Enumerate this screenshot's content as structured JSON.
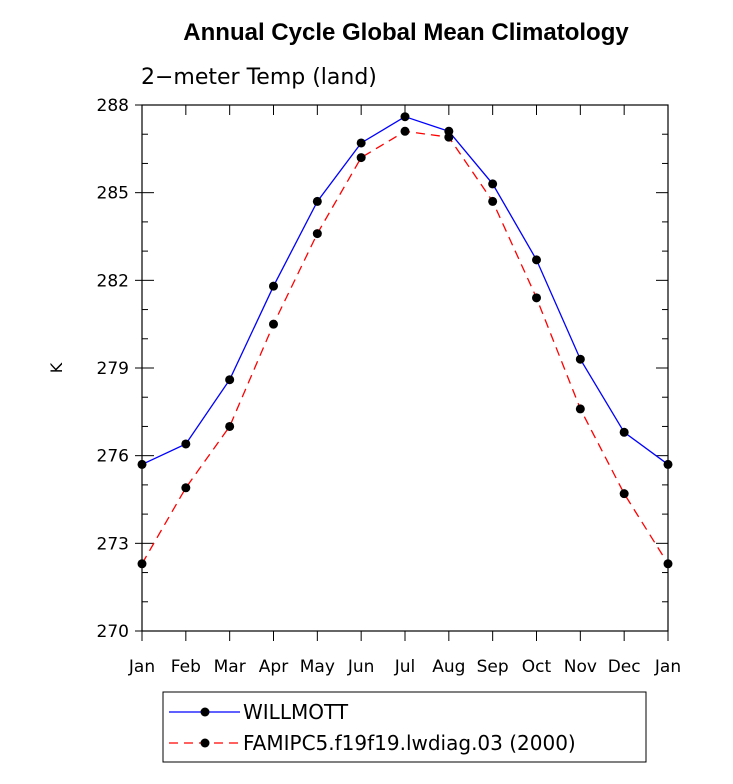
{
  "chart_data": {
    "type": "line",
    "title": "Annual Cycle Global Mean Climatology",
    "subtitle": "2−meter Temp (land)",
    "xlabel": "",
    "ylabel": "K",
    "categories": [
      "Jan",
      "Feb",
      "Mar",
      "Apr",
      "May",
      "Jun",
      "Jul",
      "Aug",
      "Sep",
      "Oct",
      "Nov",
      "Dec",
      "Jan"
    ],
    "ylim": [
      270,
      288
    ],
    "yticks": [
      270,
      273,
      276,
      279,
      282,
      285,
      288
    ],
    "ytick_labels": [
      "270",
      "273",
      "276",
      "279",
      "282",
      "285",
      "288"
    ],
    "grid": false,
    "legend_position": "bottom",
    "series": [
      {
        "name": "WILLMOTT",
        "color": "#0000ff",
        "line_style": "solid",
        "marker": "filled-circle",
        "values": [
          275.7,
          276.4,
          278.6,
          281.8,
          284.7,
          286.7,
          287.6,
          287.1,
          285.3,
          282.7,
          279.3,
          276.8,
          275.7
        ]
      },
      {
        "name": "FAMIPC5.f19f19.lwdiag.03 (2000)",
        "color": "#ff0000",
        "line_style": "dashed",
        "marker": "filled-circle",
        "values": [
          272.3,
          274.9,
          277.0,
          280.5,
          283.6,
          286.2,
          287.1,
          286.9,
          284.7,
          281.4,
          277.6,
          274.7,
          272.3
        ]
      }
    ]
  }
}
